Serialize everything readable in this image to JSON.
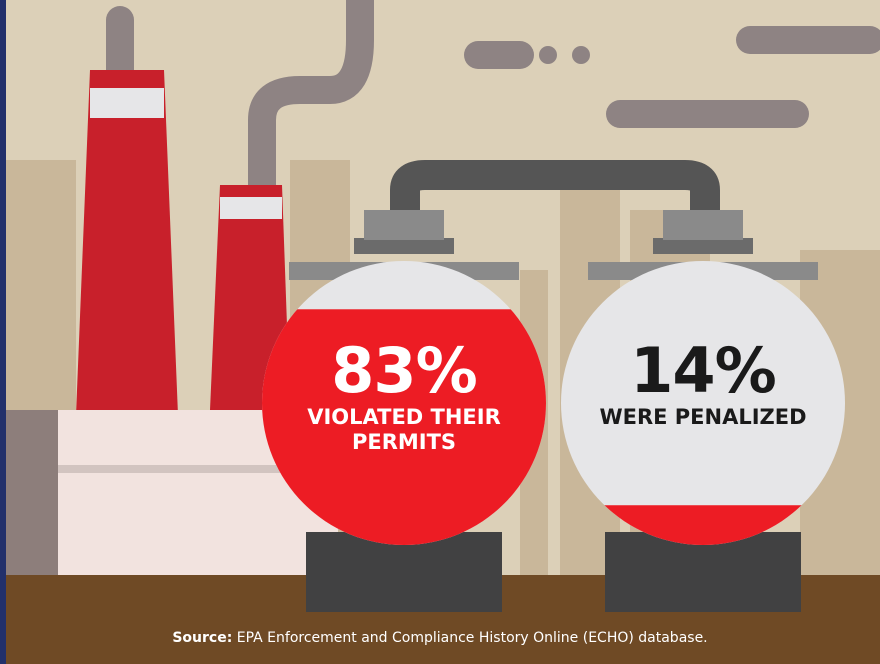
{
  "chart_data": {
    "type": "tank-fill",
    "categories": [
      "VIOLATED THEIR PERMITS",
      "WERE PENALIZED"
    ],
    "values": [
      83,
      14
    ],
    "value_labels": [
      "83%",
      "14%"
    ],
    "ylim": [
      0,
      100
    ],
    "color": "#ed1c24",
    "source_label": "Source:",
    "source": "EPA Enforcement and Compliance History Online (ECHO) database."
  }
}
